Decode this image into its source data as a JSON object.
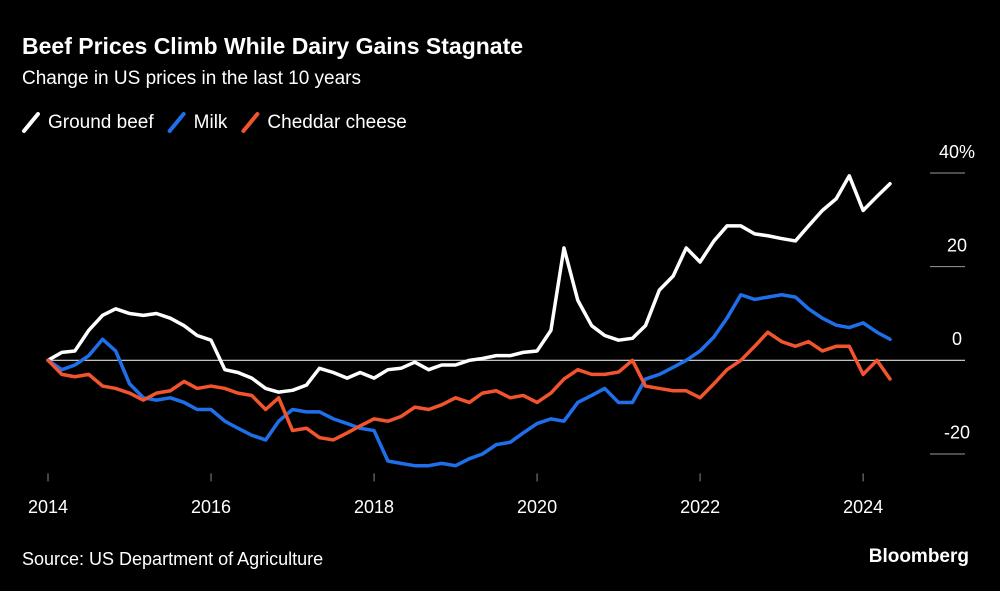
{
  "chart_data": {
    "type": "line",
    "title": "Beef Prices Climb While Dairy Gains Stagnate",
    "subtitle": "Change in US prices in the last 10 years",
    "source": "Source: US Department of Agriculture",
    "brand": "Bloomberg",
    "x": [
      2014.0,
      2014.17,
      2014.33,
      2014.5,
      2014.67,
      2014.83,
      2015.0,
      2015.17,
      2015.33,
      2015.5,
      2015.67,
      2015.83,
      2016.0,
      2016.17,
      2016.33,
      2016.5,
      2016.67,
      2016.83,
      2017.0,
      2017.17,
      2017.33,
      2017.5,
      2017.67,
      2017.83,
      2018.0,
      2018.17,
      2018.33,
      2018.5,
      2018.67,
      2018.83,
      2019.0,
      2019.17,
      2019.33,
      2019.5,
      2019.67,
      2019.83,
      2020.0,
      2020.17,
      2020.33,
      2020.5,
      2020.67,
      2020.83,
      2021.0,
      2021.17,
      2021.33,
      2021.5,
      2021.67,
      2021.83,
      2022.0,
      2022.17,
      2022.33,
      2022.5,
      2022.67,
      2022.83,
      2023.0,
      2023.17,
      2023.33,
      2023.5,
      2023.67,
      2023.83,
      2024.0,
      2024.17,
      2024.33
    ],
    "series": [
      {
        "name": "Ground beef",
        "color": "#ffffff",
        "values": [
          0,
          1.7,
          2,
          6.4,
          9.6,
          11,
          10,
          9.6,
          10,
          9,
          7.4,
          5.3,
          4.3,
          -2,
          -2.6,
          -3.8,
          -6,
          -6.8,
          -6.4,
          -5.3,
          -1.7,
          -2.6,
          -3.8,
          -2.6,
          -3.8,
          -2,
          -1.7,
          -0.4,
          -2,
          -1,
          -1,
          0,
          0.4,
          1,
          1,
          1.7,
          2,
          6.4,
          24,
          12.8,
          7.4,
          5.3,
          4.3,
          4.7,
          7.4,
          15,
          18,
          24,
          21,
          25.5,
          28.7,
          28.7,
          27,
          26.6,
          26,
          25.5,
          28.7,
          32,
          34.5,
          39.4,
          32,
          35,
          37.7
        ]
      },
      {
        "name": "Milk",
        "color": "#1f6fea",
        "values": [
          0,
          -2,
          -1,
          1,
          4.5,
          2,
          -5,
          -8,
          -8.5,
          -8,
          -9,
          -10.5,
          -10.5,
          -13,
          -14.5,
          -16,
          -17,
          -13,
          -10.5,
          -11,
          -11,
          -12.5,
          -13.5,
          -14.5,
          -15,
          -21.5,
          -22,
          -22.5,
          -22.5,
          -22,
          -22.5,
          -21,
          -20,
          -18,
          -17.5,
          -15.5,
          -13.5,
          -12.5,
          -13,
          -9,
          -7.5,
          -6,
          -9,
          -9,
          -4,
          -3,
          -1.5,
          0,
          2,
          5,
          9,
          14,
          13,
          13.5,
          14,
          13.5,
          11,
          9,
          7.5,
          7,
          8,
          6,
          4.5
        ]
      },
      {
        "name": "Cheddar cheese",
        "color": "#f2542d",
        "values": [
          0,
          -3,
          -3.5,
          -3,
          -5.5,
          -6,
          -7,
          -8.5,
          -7,
          -6.5,
          -4.5,
          -6,
          -5.5,
          -6,
          -7,
          -7.5,
          -10.5,
          -8,
          -15,
          -14.5,
          -16.5,
          -17,
          -15.5,
          -14,
          -12.5,
          -13,
          -12,
          -10,
          -10.5,
          -9.5,
          -8,
          -9,
          -7,
          -6.5,
          -8,
          -7.5,
          -9,
          -7,
          -4,
          -2,
          -3,
          -3,
          -2.5,
          0,
          -5.5,
          -6,
          -6.5,
          -6.5,
          -8,
          -5,
          -2,
          0,
          3,
          6,
          4,
          3,
          4,
          2,
          3,
          3,
          -3,
          0,
          -4
        ]
      }
    ],
    "xlim": [
      2013.9,
      2025.25
    ],
    "xticks": [
      2014,
      2016,
      2018,
      2020,
      2022,
      2024
    ],
    "ylim": [
      -25,
      45
    ],
    "yticks": [
      -20,
      0,
      {
        "value": 40,
        "label": "40%"
      },
      20
    ],
    "y_axis_side": "right"
  }
}
